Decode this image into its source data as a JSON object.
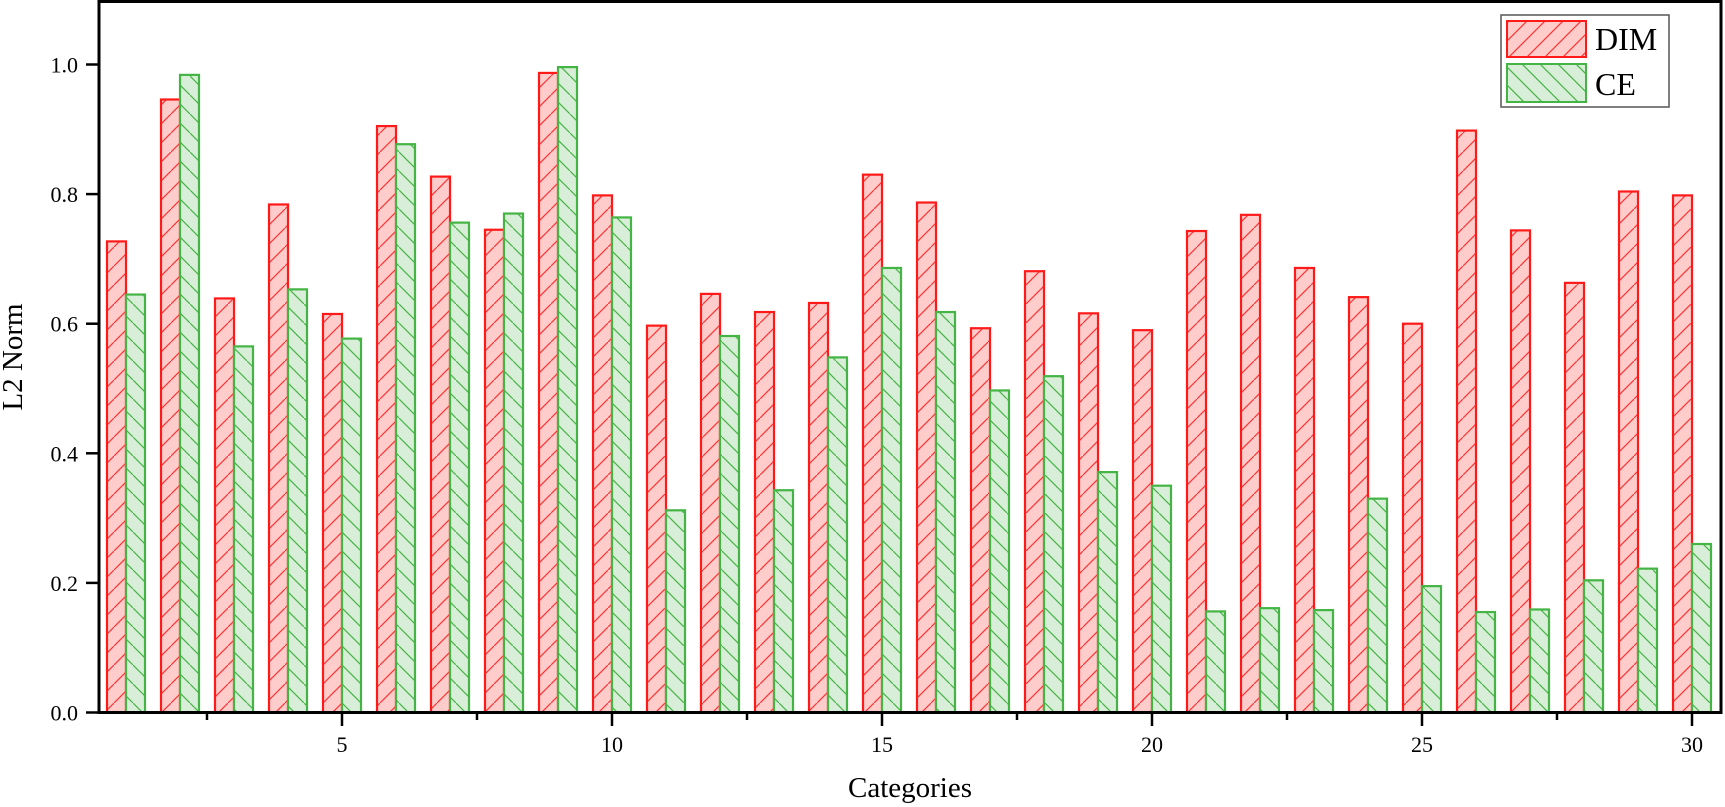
{
  "chart_data": {
    "type": "bar",
    "title": "",
    "xlabel": "Categories",
    "ylabel": "L2 Norm",
    "ylim": [
      0,
      1.1
    ],
    "xlim": [
      0.4,
      30.6
    ],
    "yticks": [
      0.0,
      0.2,
      0.4,
      0.6,
      0.8,
      1.0
    ],
    "ytick_labels": [
      "0.0",
      "0.2",
      "0.4",
      "0.6",
      "0.8",
      "1.0"
    ],
    "xticks_major": [
      5,
      10,
      15,
      20,
      25,
      30
    ],
    "xtick_labels": [
      "5",
      "10",
      "15",
      "20",
      "25",
      "30"
    ],
    "xticks_minor": [
      2.5,
      7.5,
      12.5,
      17.5,
      22.5,
      27.5
    ],
    "grid": false,
    "legend_position": "upper right",
    "categories": [
      1,
      2,
      3,
      4,
      5,
      6,
      7,
      8,
      9,
      10,
      11,
      12,
      13,
      14,
      15,
      16,
      17,
      18,
      19,
      20,
      21,
      22,
      23,
      24,
      25,
      26,
      27,
      28,
      29,
      30
    ],
    "series": [
      {
        "name": "DIM",
        "edge_color": "#ff1a1a",
        "fill_color": "#ffcccc",
        "hatch": "/",
        "values": [
          0.727,
          0.946,
          0.639,
          0.784,
          0.615,
          0.905,
          0.827,
          0.745,
          0.987,
          0.798,
          0.597,
          0.646,
          0.618,
          0.632,
          0.83,
          0.787,
          0.593,
          0.681,
          0.616,
          0.59,
          0.743,
          0.768,
          0.686,
          0.641,
          0.6,
          0.898,
          0.744,
          0.663,
          0.804,
          0.798
        ]
      },
      {
        "name": "CE",
        "edge_color": "#44b444",
        "fill_color": "#d9eed9",
        "hatch": "\\",
        "values": [
          0.645,
          0.984,
          0.565,
          0.653,
          0.577,
          0.877,
          0.756,
          0.77,
          0.996,
          0.764,
          0.312,
          0.581,
          0.343,
          0.548,
          0.686,
          0.618,
          0.497,
          0.519,
          0.371,
          0.35,
          0.156,
          0.161,
          0.158,
          0.33,
          0.195,
          0.155,
          0.159,
          0.204,
          0.222,
          0.26
        ]
      }
    ]
  },
  "legend": {
    "items": [
      {
        "label": "DIM"
      },
      {
        "label": "CE"
      }
    ]
  }
}
